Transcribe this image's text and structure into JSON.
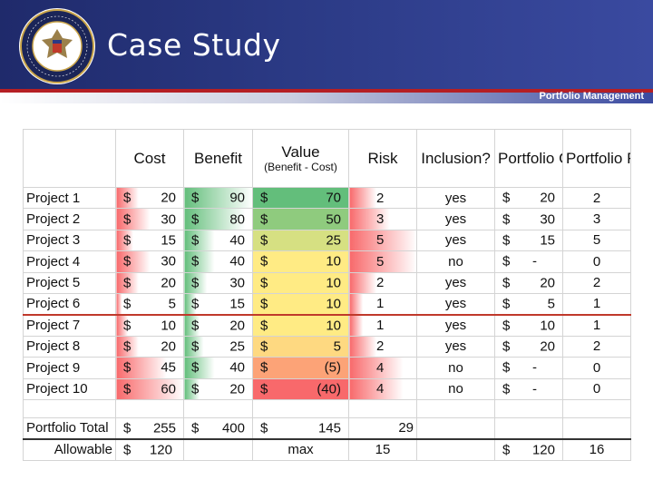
{
  "slide": {
    "title": "Case Study",
    "subtitle": "Portfolio Management",
    "seal_text": "EXECUTIVE OFFICE OF THE PRESIDENT OF THE UNITED STATES"
  },
  "colors": {
    "header_bg": "#2b3a85",
    "accent_red": "#b51f24",
    "value_scale_high": "#63be7b",
    "value_scale_mid": "#ffeb84",
    "value_scale_low": "#f8696b"
  },
  "table": {
    "headers": {
      "cost": "Cost",
      "benefit": "Benefit",
      "value": "Value",
      "value_sub": "(Benefit - Cost)",
      "risk": "Risk",
      "inclusion": "Inclusion?",
      "portfolio_cost": "Portfolio Cost",
      "portfolio_risk": "Portfolio Risk"
    },
    "currency": "$",
    "rows": [
      {
        "name": "Project 1",
        "cost": "20",
        "benefit": "90",
        "value": "70",
        "risk": "2",
        "inclusion": "yes",
        "pcost": "20",
        "prisk": "2"
      },
      {
        "name": "Project 2",
        "cost": "30",
        "benefit": "80",
        "value": "50",
        "risk": "3",
        "inclusion": "yes",
        "pcost": "30",
        "prisk": "3"
      },
      {
        "name": "Project 3",
        "cost": "15",
        "benefit": "40",
        "value": "25",
        "risk": "5",
        "inclusion": "yes",
        "pcost": "15",
        "prisk": "5"
      },
      {
        "name": "Project 4",
        "cost": "30",
        "benefit": "40",
        "value": "10",
        "risk": "5",
        "inclusion": "no",
        "pcost": "-",
        "prisk": "0"
      },
      {
        "name": "Project 5",
        "cost": "20",
        "benefit": "30",
        "value": "10",
        "risk": "2",
        "inclusion": "yes",
        "pcost": "20",
        "prisk": "2"
      },
      {
        "name": "Project 6",
        "cost": "5",
        "benefit": "15",
        "value": "10",
        "risk": "1",
        "inclusion": "yes",
        "pcost": "5",
        "prisk": "1"
      },
      {
        "name": "Project 7",
        "cost": "10",
        "benefit": "20",
        "value": "10",
        "risk": "1",
        "inclusion": "yes",
        "pcost": "10",
        "prisk": "1"
      },
      {
        "name": "Project 8",
        "cost": "20",
        "benefit": "25",
        "value": "5",
        "risk": "2",
        "inclusion": "yes",
        "pcost": "20",
        "prisk": "2"
      },
      {
        "name": "Project 9",
        "cost": "45",
        "benefit": "40",
        "value": "(5)",
        "risk": "4",
        "inclusion": "no",
        "pcost": "-",
        "prisk": "0"
      },
      {
        "name": "Project 10",
        "cost": "60",
        "benefit": "20",
        "value": "(40)",
        "risk": "4",
        "inclusion": "no",
        "pcost": "-",
        "prisk": "0"
      }
    ],
    "bars": {
      "cost": [
        0.33,
        0.5,
        0.25,
        0.5,
        0.33,
        0.08,
        0.17,
        0.33,
        0.75,
        1.0
      ],
      "benefit": [
        1.0,
        0.89,
        0.44,
        0.44,
        0.33,
        0.17,
        0.22,
        0.28,
        0.44,
        0.22
      ],
      "risk": [
        0.4,
        0.6,
        1.0,
        1.0,
        0.4,
        0.2,
        0.2,
        0.4,
        0.8,
        0.8
      ]
    },
    "value_colors": [
      "#63be7b",
      "#8fcb7e",
      "#d6e082",
      "#ffeb84",
      "#ffeb84",
      "#ffeb84",
      "#ffeb84",
      "#fed981",
      "#fca377",
      "#f8696b"
    ],
    "total": {
      "label": "Portfolio Total",
      "cost": "255",
      "benefit": "400",
      "value": "145",
      "risk": "29"
    },
    "allowable": {
      "label": "Allowable",
      "cost": "120",
      "value_label": "max",
      "risk": "15",
      "pcost": "120",
      "prisk": "16"
    }
  }
}
